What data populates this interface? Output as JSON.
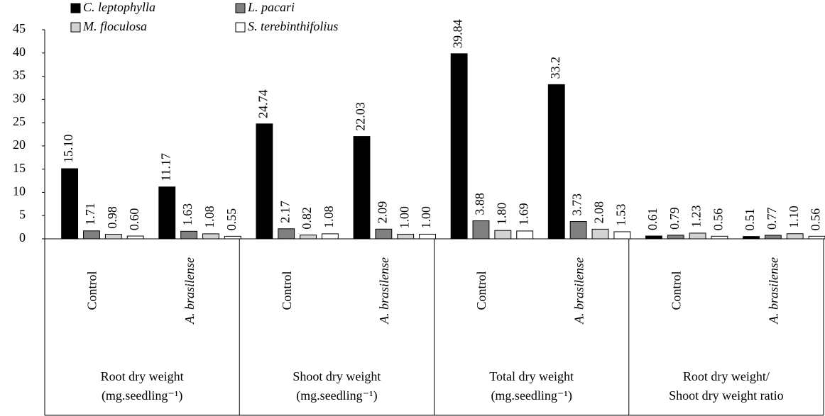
{
  "chart_data": {
    "type": "bar",
    "categories": [
      "Control",
      "A. brasilense",
      "Control",
      "A. brasilense",
      "Control",
      "A. brasilense",
      "Control",
      "A. brasilense"
    ],
    "groups": [
      [
        "Root dry weight",
        "(mg.seedling⁻¹)"
      ],
      [
        "Shoot dry weight",
        "(mg.seedling⁻¹)"
      ],
      [
        "Total dry weight",
        "(mg.seedling⁻¹)"
      ],
      [
        "Root dry weight/",
        "Shoot dry weight ratio"
      ]
    ],
    "series": [
      {
        "name": "C. leptophylla",
        "color": "#000000",
        "values": [
          15.1,
          11.17,
          24.74,
          22.03,
          39.84,
          33.2,
          0.61,
          0.51
        ],
        "value_labels": [
          "15.10",
          "11.17",
          "24.74",
          "22.03",
          "39.84",
          "33.2",
          "0.61",
          "0.51"
        ]
      },
      {
        "name": "L. pacari",
        "color": "#808080",
        "values": [
          1.71,
          1.63,
          2.17,
          2.09,
          3.88,
          3.73,
          0.79,
          0.77
        ],
        "value_labels": [
          "1.71",
          "1.63",
          "2.17",
          "2.09",
          "3.88",
          "3.73",
          "0.79",
          "0.77"
        ]
      },
      {
        "name": "M. floculosa",
        "color": "#d3d3d3",
        "values": [
          0.98,
          1.08,
          0.82,
          1.0,
          1.8,
          2.08,
          1.23,
          1.1
        ],
        "value_labels": [
          "0.98",
          "1.08",
          "0.82",
          "1.00",
          "1.80",
          "2.08",
          "1.23",
          "1.10"
        ]
      },
      {
        "name": "S. terebinthifolius",
        "color": "#ffffff",
        "values": [
          0.6,
          0.55,
          1.08,
          1.0,
          1.69,
          1.53,
          0.56,
          0.56
        ],
        "value_labels": [
          "0.60",
          "0.55",
          "1.08",
          "1.00",
          "1.69",
          "1.53",
          "0.56",
          "0.56"
        ]
      }
    ],
    "ylim": [
      0,
      45
    ],
    "yticks": [
      0,
      5,
      10,
      15,
      20,
      25,
      30,
      35,
      40,
      45
    ],
    "grid": false,
    "legend": "top-left"
  }
}
